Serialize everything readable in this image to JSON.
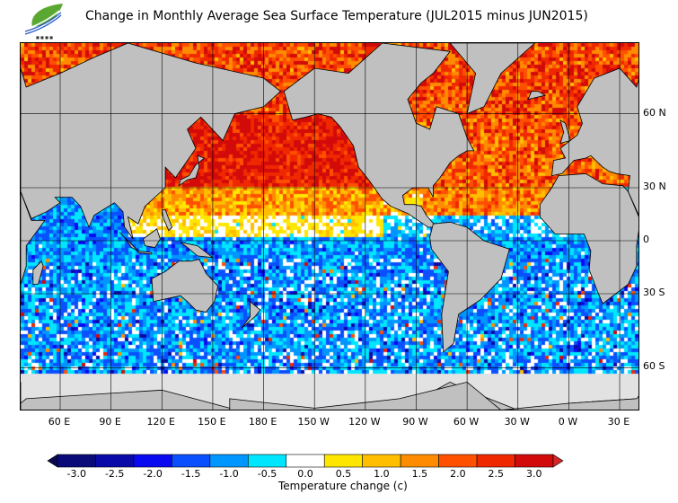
{
  "title": "Change in Monthly Average Sea Surface Temperature (JUL2015 minus JUN2015)",
  "logo": {
    "text": "香港天文台"
  },
  "map": {
    "lat_labels": [
      "60 N",
      "30 N",
      "0",
      "30 S",
      "60 S"
    ],
    "lat_values": [
      60,
      30,
      0,
      -30,
      -60
    ],
    "lon_labels": [
      "60 E",
      "90 E",
      "120 E",
      "150 E",
      "180 E",
      "150 W",
      "120 W",
      "90 W",
      "60 W",
      "30 W",
      "0 W",
      "30 E"
    ],
    "lon_values": [
      60,
      90,
      120,
      150,
      180,
      210,
      240,
      270,
      300,
      330,
      360,
      390
    ],
    "land_color": "#c0c0c0",
    "ice_color": "#e2e2e2"
  },
  "colorbar": {
    "title": "Temperature change  (c)",
    "labels": [
      "-3.0",
      "-2.5",
      "-2.0",
      "-1.5",
      "-1.0",
      "-0.5",
      "0.0",
      "0.5",
      "1.0",
      "1.5",
      "2.0",
      "2.5",
      "3.0"
    ],
    "colors": [
      "#0a0a78",
      "#0a0aa8",
      "#0a0af0",
      "#0a50ff",
      "#0096ff",
      "#00e6ff",
      "#ffffff",
      "#ffe600",
      "#ffbe00",
      "#ff8c00",
      "#ff5000",
      "#f02800",
      "#d20a0a"
    ],
    "under_color": "#0a0a50",
    "over_color": "#d22828"
  }
}
